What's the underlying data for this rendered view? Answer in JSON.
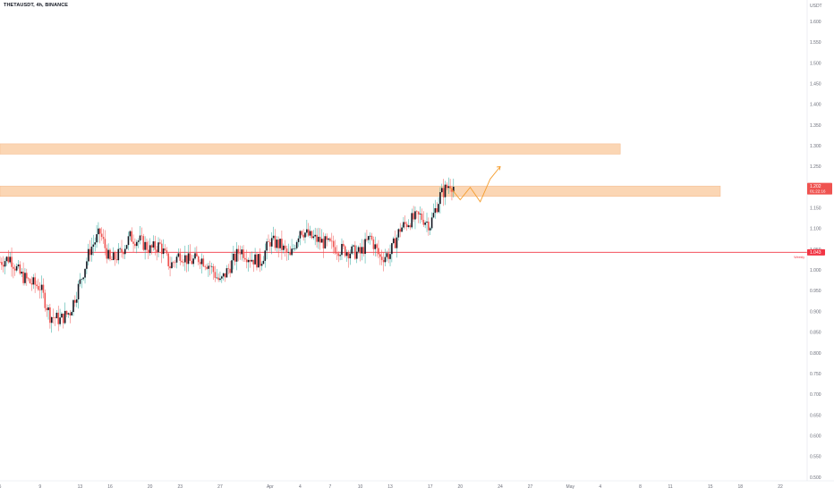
{
  "header": {
    "symbol_label": "THETAUSDT, 4h, BINANCE"
  },
  "chart_data": {
    "type": "candlestick",
    "symbol": "THETAUSDT",
    "timeframe": "4h",
    "exchange": "BINANCE",
    "currency": "USDT",
    "y_range": [
      0.5,
      1.65
    ],
    "y_ticks": [
      "1.600",
      "1.550",
      "1.500",
      "1.450",
      "1.400",
      "1.350",
      "1.300",
      "1.250",
      "1.200",
      "1.150",
      "1.100",
      "1.050",
      "1.000",
      "0.950",
      "0.900",
      "0.850",
      "0.800",
      "0.750",
      "0.700",
      "0.650",
      "0.600",
      "0.550",
      "0.500"
    ],
    "x_ticks": [
      "5",
      "9",
      "13",
      "16",
      "20",
      "23",
      "27",
      "Apr",
      "4",
      "7",
      "10",
      "13",
      "17",
      "20",
      "24",
      "27",
      "May",
      "4",
      "8",
      "11",
      "15",
      "18",
      "22"
    ],
    "x_tick_dates": [
      "2023-03-05",
      "2023-03-09",
      "2023-03-13",
      "2023-03-16",
      "2023-03-20",
      "2023-03-23",
      "2023-03-27",
      "2023-04-01",
      "2023-04-04",
      "2023-04-07",
      "2023-04-10",
      "2023-04-13",
      "2023-04-17",
      "2023-04-20",
      "2023-04-24",
      "2023-04-27",
      "2023-05-01",
      "2023-05-04",
      "2023-05-08",
      "2023-05-11",
      "2023-05-15",
      "2023-05-18",
      "2023-05-22"
    ],
    "price_path": [
      [
        "2023-03-05",
        1.02
      ],
      [
        "2023-03-06",
        1.03
      ],
      [
        "2023-03-07",
        0.99
      ],
      [
        "2023-03-08",
        0.97
      ],
      [
        "2023-03-09",
        0.96
      ],
      [
        "2023-03-10",
        0.89
      ],
      [
        "2023-03-11",
        0.88
      ],
      [
        "2023-03-12",
        0.9
      ],
      [
        "2023-03-13",
        0.97
      ],
      [
        "2023-03-14",
        1.05
      ],
      [
        "2023-03-15",
        1.09
      ],
      [
        "2023-03-16",
        1.02
      ],
      [
        "2023-03-17",
        1.04
      ],
      [
        "2023-03-18",
        1.08
      ],
      [
        "2023-03-19",
        1.07
      ],
      [
        "2023-03-20",
        1.05
      ],
      [
        "2023-03-21",
        1.06
      ],
      [
        "2023-03-22",
        1.01
      ],
      [
        "2023-03-23",
        1.04
      ],
      [
        "2023-03-24",
        1.02
      ],
      [
        "2023-03-25",
        1.03
      ],
      [
        "2023-03-26",
        1.01
      ],
      [
        "2023-03-27",
        0.97
      ],
      [
        "2023-03-28",
        1.01
      ],
      [
        "2023-03-29",
        1.05
      ],
      [
        "2023-03-30",
        1.03
      ],
      [
        "2023-03-31",
        1.02
      ],
      [
        "2023-04-01",
        1.07
      ],
      [
        "2023-04-02",
        1.06
      ],
      [
        "2023-04-03",
        1.03
      ],
      [
        "2023-04-04",
        1.1
      ],
      [
        "2023-04-05",
        1.08
      ],
      [
        "2023-04-06",
        1.07
      ],
      [
        "2023-04-07",
        1.06
      ],
      [
        "2023-04-08",
        1.05
      ],
      [
        "2023-04-09",
        1.045
      ],
      [
        "2023-04-10",
        1.04
      ],
      [
        "2023-04-11",
        1.08
      ],
      [
        "2023-04-12",
        1.03
      ],
      [
        "2023-04-13",
        1.04
      ],
      [
        "2023-04-14",
        1.1
      ],
      [
        "2023-04-15",
        1.12
      ],
      [
        "2023-04-16",
        1.13
      ],
      [
        "2023-04-17",
        1.11
      ],
      [
        "2023-04-18",
        1.18
      ],
      [
        "2023-04-19",
        1.21
      ],
      [
        "2023-04-19T08:00",
        1.202
      ]
    ],
    "candle_wick": 0.04,
    "candle_step_hours": 4,
    "candle_colors": {
      "up": "#26a69a",
      "down": "#ef5350",
      "body_dark": "#131722"
    },
    "supply_zones": [
      {
        "y_low": 1.28,
        "y_high": 1.305,
        "x_start": "2023-03-01",
        "x_end": "2023-05-06"
      },
      {
        "y_low": 1.178,
        "y_high": 1.203,
        "x_start": "2023-03-01",
        "x_end": "2023-05-16"
      }
    ],
    "zone_color": "#fbd6b4",
    "projection_path": [
      [
        "2023-04-19",
        1.2
      ],
      [
        "2023-04-20",
        1.17
      ],
      [
        "2023-04-21",
        1.2
      ],
      [
        "2023-04-22",
        1.165
      ],
      [
        "2023-04-23",
        1.22
      ],
      [
        "2023-04-24",
        1.25
      ]
    ],
    "projection_color": "#f59e2f",
    "horizontal_line": {
      "y": 1.043,
      "label": "Weekly",
      "color": "#f23645"
    },
    "price_badges": [
      {
        "value": "1.202",
        "sub": "01:22:16",
        "color": "#ef5350"
      },
      {
        "value": "1.043",
        "color": "#f23645"
      }
    ],
    "axis_tick_color": "#6a6d78",
    "grid": false
  }
}
